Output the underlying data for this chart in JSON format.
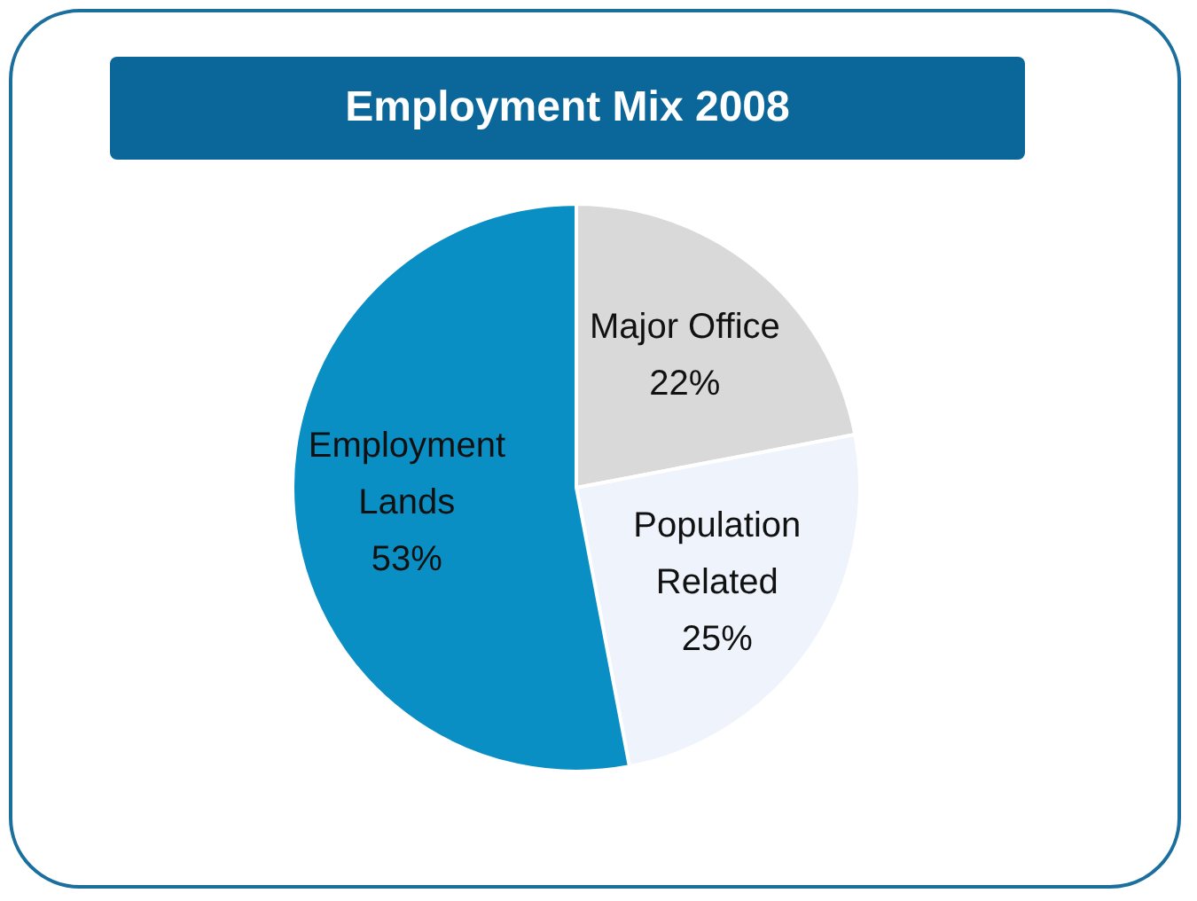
{
  "chart_data": {
    "type": "pie",
    "title": "Employment Mix 2008",
    "categories": [
      "Major Office",
      "Population Related",
      "Employment Lands"
    ],
    "values": [
      22,
      25,
      53
    ],
    "colors": [
      "#d9d9d9",
      "#eef3fc",
      "#0a8fc4"
    ],
    "value_labels": [
      "22%",
      "25%",
      "53%"
    ],
    "legend": false
  }
}
